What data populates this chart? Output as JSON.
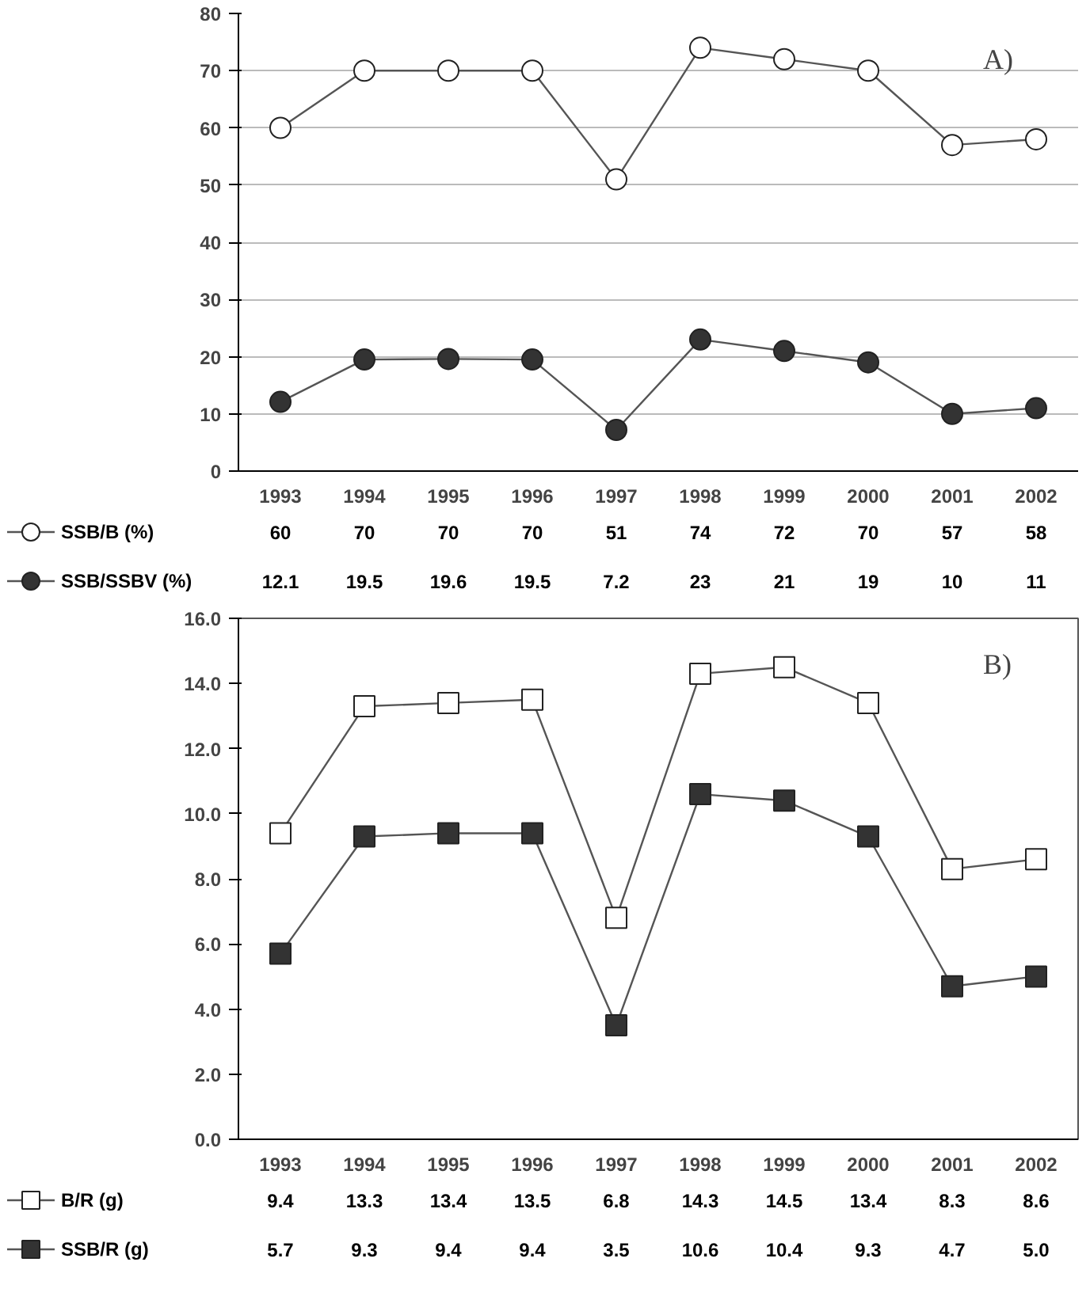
{
  "chart_data": [
    {
      "type": "line",
      "annotations": [
        "A)"
      ],
      "categories": [
        "1993",
        "1994",
        "1995",
        "1996",
        "1997",
        "1998",
        "1999",
        "2000",
        "2001",
        "2002"
      ],
      "series": [
        {
          "name": "SSB/B (%)",
          "color": "#ffffff",
          "values": [
            60,
            70,
            70,
            70,
            51,
            74,
            72,
            70,
            57,
            58
          ],
          "value_labels": [
            "60",
            "70",
            "70",
            "70",
            "51",
            "74",
            "72",
            "70",
            "57",
            "58"
          ]
        },
        {
          "name": "SSB/SSBV (%)",
          "color": "#333333",
          "values": [
            12.1,
            19.5,
            19.6,
            19.5,
            7.2,
            23,
            21,
            19,
            10,
            11
          ],
          "value_labels": [
            "12.1",
            "19.5",
            "19.6",
            "19.5",
            "7.2",
            "23",
            "21",
            "19",
            "10",
            "11"
          ]
        }
      ],
      "ylim": [
        0,
        80
      ],
      "yticks": [
        0,
        10,
        20,
        30,
        40,
        50,
        60,
        70,
        80
      ],
      "grid": "y",
      "legend": "bottom",
      "marker": "circle"
    },
    {
      "type": "line",
      "annotations": [
        "B)"
      ],
      "categories": [
        "1993",
        "1994",
        "1995",
        "1996",
        "1997",
        "1998",
        "1999",
        "2000",
        "2001",
        "2002"
      ],
      "series": [
        {
          "name": "B/R (g)",
          "color": "#ffffff",
          "values": [
            9.4,
            13.3,
            13.4,
            13.5,
            6.8,
            14.3,
            14.5,
            13.4,
            8.3,
            8.6
          ],
          "value_labels": [
            "9.4",
            "13.3",
            "13.4",
            "13.5",
            "6.8",
            "14.3",
            "14.5",
            "13.4",
            "8.3",
            "8.6"
          ]
        },
        {
          "name": "SSB/R (g)",
          "color": "#333333",
          "values": [
            5.7,
            9.3,
            9.4,
            9.4,
            3.5,
            10.6,
            10.4,
            9.3,
            4.7,
            5.0
          ],
          "value_labels": [
            "5.7",
            "9.3",
            "9.4",
            "9.4",
            "3.5",
            "10.6",
            "10.4",
            "9.3",
            "4.7",
            "5.0"
          ]
        }
      ],
      "ylim": [
        0,
        16
      ],
      "yticks": [
        {
          "value": 0,
          "label": "0.0"
        },
        {
          "value": 2,
          "label": "2.0"
        },
        {
          "value": 4,
          "label": "4.0"
        },
        {
          "value": 6,
          "label": "6.0"
        },
        {
          "value": 8,
          "label": "8.0"
        },
        {
          "value": 10,
          "label": "10.0"
        },
        {
          "value": 12,
          "label": "12.0"
        },
        {
          "value": 14,
          "label": "14.0"
        },
        {
          "value": 16,
          "label": "16.0"
        }
      ],
      "grid": false,
      "legend": "bottom",
      "marker": "square"
    }
  ]
}
